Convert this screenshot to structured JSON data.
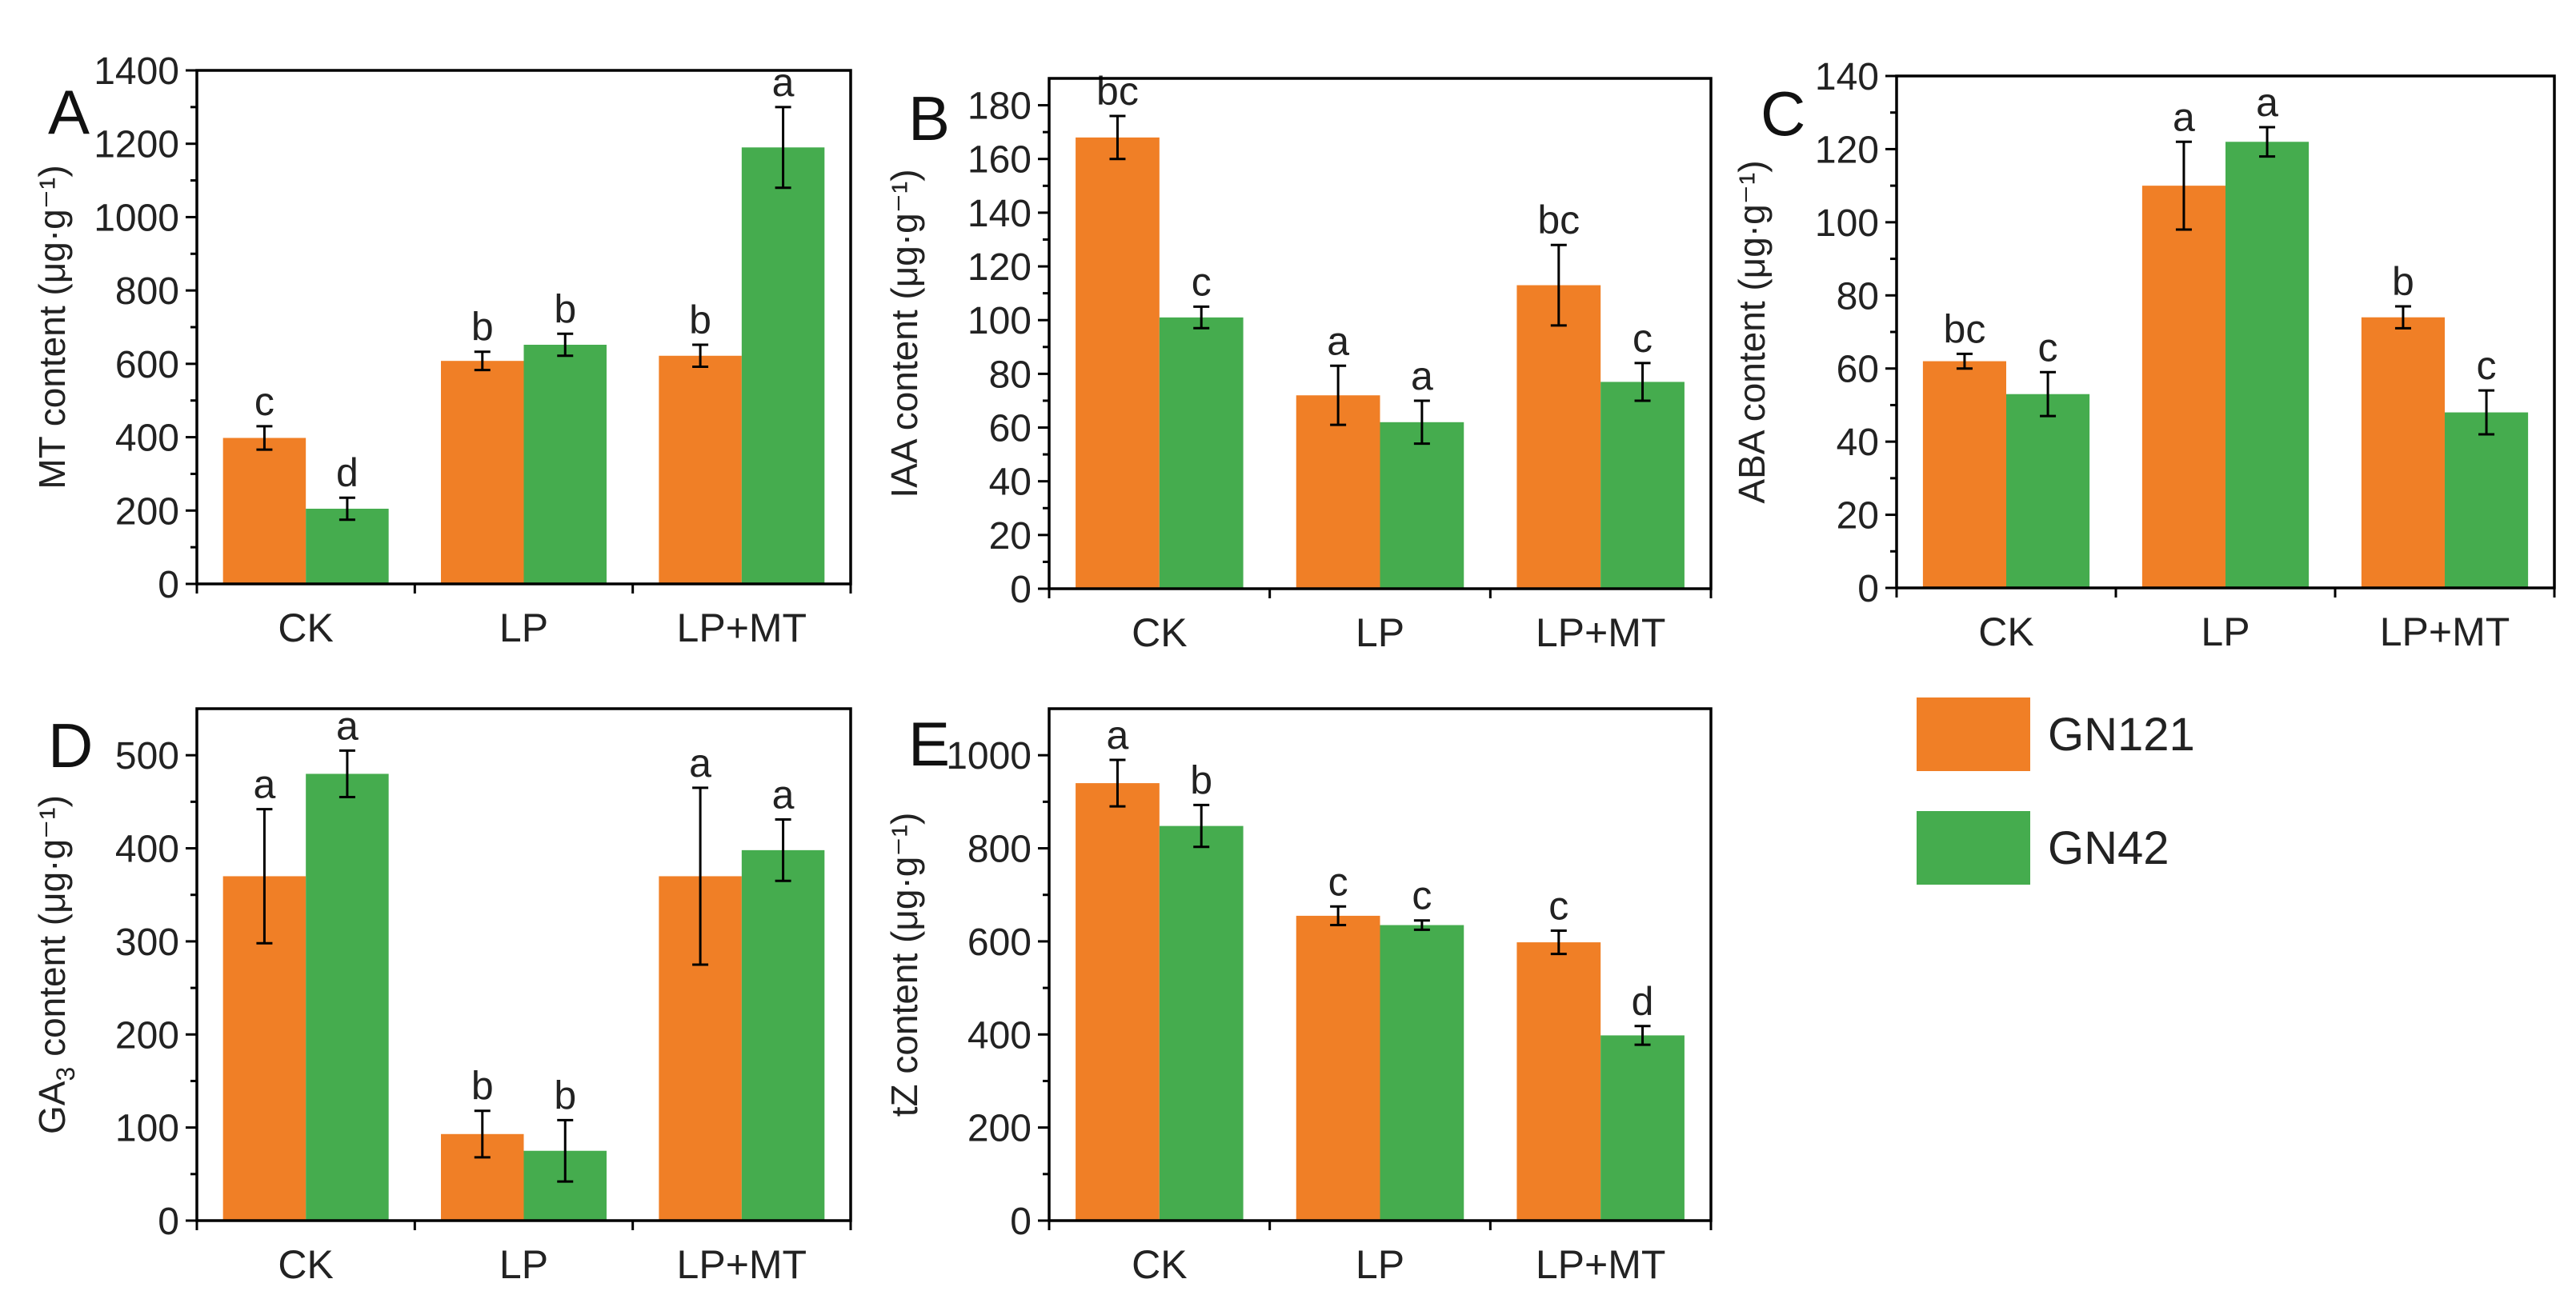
{
  "colors": {
    "GN121": "#F07F26",
    "GN42": "#45AC4E",
    "axis": "#000000",
    "text": "#222222"
  },
  "legend": {
    "items": [
      {
        "name": "GN121"
      },
      {
        "name": "GN42"
      }
    ]
  },
  "chart_data": [
    {
      "id": "A",
      "type": "bar",
      "panel_label": "A",
      "ylabel": "MT content (μg·g⁻¹)",
      "categories": [
        "CK",
        "LP",
        "LP+MT"
      ],
      "ylim": [
        0,
        1400
      ],
      "yticks": [
        0,
        200,
        400,
        600,
        800,
        1000,
        1200,
        1400
      ],
      "series": [
        {
          "name": "GN121",
          "values": [
            398,
            608,
            622
          ],
          "errors": [
            32,
            25,
            30
          ],
          "letters": [
            "c",
            "b",
            "b"
          ]
        },
        {
          "name": "GN42",
          "values": [
            205,
            652,
            1190
          ],
          "errors": [
            30,
            30,
            110
          ],
          "letters": [
            "d",
            "b",
            "a"
          ]
        }
      ]
    },
    {
      "id": "B",
      "type": "bar",
      "panel_label": "B",
      "ylabel": "IAA content (μg·g⁻¹)",
      "categories": [
        "CK",
        "LP",
        "LP+MT"
      ],
      "ylim": [
        0,
        190
      ],
      "yticks": [
        0,
        20,
        40,
        60,
        80,
        100,
        120,
        140,
        160,
        180
      ],
      "series": [
        {
          "name": "GN121",
          "values": [
            168,
            72,
            113
          ],
          "errors": [
            8,
            11,
            15
          ],
          "letters": [
            "bc",
            "a",
            "bc"
          ]
        },
        {
          "name": "GN42",
          "values": [
            101,
            62,
            77
          ],
          "errors": [
            4,
            8,
            7
          ],
          "letters": [
            "c",
            "a",
            "c"
          ]
        }
      ]
    },
    {
      "id": "C",
      "type": "bar",
      "panel_label": "C",
      "ylabel": "ABA content (μg·g⁻¹)",
      "categories": [
        "CK",
        "LP",
        "LP+MT"
      ],
      "ylim": [
        0,
        140
      ],
      "yticks": [
        0,
        20,
        40,
        60,
        80,
        100,
        120,
        140
      ],
      "series": [
        {
          "name": "GN121",
          "values": [
            62,
            110,
            74
          ],
          "errors": [
            2,
            12,
            3
          ],
          "letters": [
            "bc",
            "a",
            "b"
          ]
        },
        {
          "name": "GN42",
          "values": [
            53,
            122,
            48
          ],
          "errors": [
            6,
            4,
            6
          ],
          "letters": [
            "c",
            "a",
            "c"
          ]
        }
      ]
    },
    {
      "id": "D",
      "type": "bar",
      "panel_label": "D",
      "ylabel": "GA3 content (μg·g⁻¹)",
      "categories": [
        "CK",
        "LP",
        "LP+MT"
      ],
      "ylim": [
        0,
        550
      ],
      "yticks": [
        0,
        100,
        200,
        300,
        400,
        500
      ],
      "series": [
        {
          "name": "GN121",
          "values": [
            370,
            93,
            370
          ],
          "errors": [
            72,
            25,
            95
          ],
          "letters": [
            "a",
            "b",
            "a"
          ]
        },
        {
          "name": "GN42",
          "values": [
            480,
            75,
            398
          ],
          "errors": [
            25,
            33,
            33
          ],
          "letters": [
            "a",
            "b",
            "a"
          ]
        }
      ]
    },
    {
      "id": "E",
      "type": "bar",
      "panel_label": "E",
      "ylabel": "tZ content (μg·g⁻¹)",
      "categories": [
        "CK",
        "LP",
        "LP+MT"
      ],
      "ylim": [
        0,
        1100
      ],
      "yticks": [
        0,
        200,
        400,
        600,
        800,
        1000
      ],
      "series": [
        {
          "name": "GN121",
          "values": [
            940,
            655,
            598
          ],
          "errors": [
            50,
            20,
            25
          ],
          "letters": [
            "a",
            "c",
            "c"
          ]
        },
        {
          "name": "GN42",
          "values": [
            848,
            635,
            398
          ],
          "errors": [
            45,
            10,
            20
          ],
          "letters": [
            "b",
            "c",
            "d"
          ]
        }
      ]
    }
  ]
}
